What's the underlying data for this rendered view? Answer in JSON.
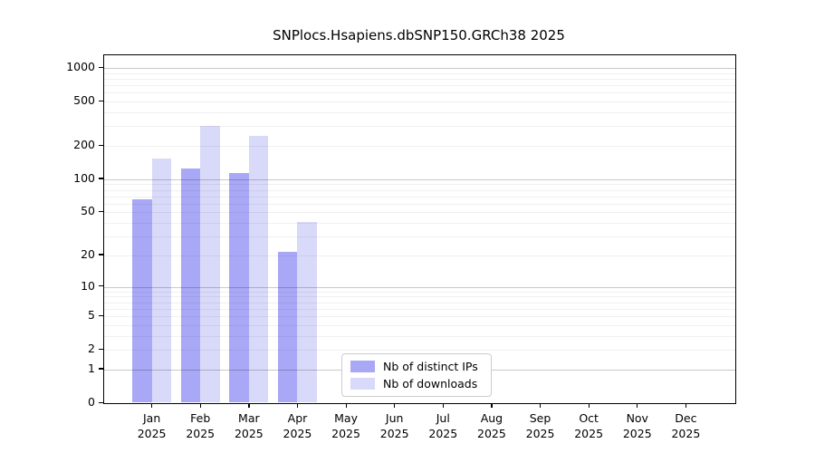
{
  "chart_data": {
    "type": "bar",
    "title": "SNPlocs.Hsapiens.dbSNP150.GRCh38 2025",
    "categories": [
      "Jan 2025",
      "Feb 2025",
      "Mar 2025",
      "Apr 2025",
      "May 2025",
      "Jun 2025",
      "Jul 2025",
      "Aug 2025",
      "Sep 2025",
      "Oct 2025",
      "Nov 2025",
      "Dec 2025"
    ],
    "series": [
      {
        "name": "Nb of distinct IPs",
        "color": "#a8a8f6",
        "values": [
          65,
          123,
          112,
          21,
          0,
          0,
          0,
          0,
          0,
          0,
          0,
          0
        ]
      },
      {
        "name": "Nb of downloads",
        "color": "#d9d9f9",
        "values": [
          152,
          299,
          243,
          40,
          0,
          0,
          0,
          0,
          0,
          0,
          0,
          0
        ]
      }
    ],
    "yscale": "log1p",
    "yticks": [
      0,
      1,
      2,
      5,
      10,
      20,
      50,
      100,
      200,
      500,
      1000
    ],
    "ylim": [
      0,
      1300
    ],
    "xlabel": "",
    "ylabel": "",
    "grid": true,
    "legend_position": "lower-center-inside"
  }
}
